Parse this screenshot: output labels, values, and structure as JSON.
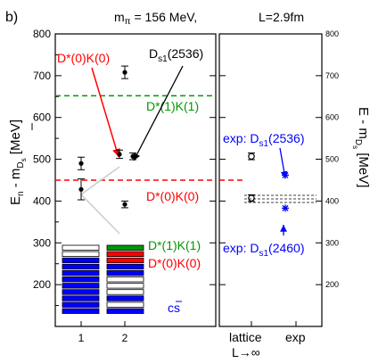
{
  "panel_label": "b)",
  "header": {
    "mpi_prefix": "m",
    "mpi_sub": "π",
    "mpi_value": " = 156 MeV,",
    "L_text": "L=2.9fm"
  },
  "left_ylabel": {
    "main": "E",
    "sub": "n",
    "rest": " - m",
    "rest_sub": "D",
    "rest_subsub": "s",
    "unit": " [MeV]"
  },
  "right_ylabel": {
    "main": "E - m",
    "sub": "D",
    "subsub": "s",
    "unit": " [MeV]"
  },
  "colors": {
    "red": "#ff0000",
    "green": "#009900",
    "blue": "#0000ff",
    "black": "#000000",
    "gray": "#cccccc"
  },
  "labels": {
    "dstar0_top": "D*(0)K(0)",
    "ds1_2536": "D",
    "ds1_2536_sub": "s1",
    "ds1_2536_rest": "(2536)",
    "dstar1_line": "D*(1)K(1)",
    "dstar0_line": "D*(0)K(0)",
    "legend_green": "D*(1)K(1)",
    "legend_red": "D*(0)K(0)",
    "cs_bar": "cs",
    "exp_2536_prefix": "exp: D",
    "exp_2536_sub": "s1",
    "exp_2536_rest": "(2536)",
    "exp_2460_prefix": "exp: D",
    "exp_2460_sub": "s1",
    "exp_2460_rest": "(2460)",
    "xlabel_right_1": "lattice",
    "xlabel_right_2": "exp",
    "xlabel_right_3": "L→∞"
  },
  "chart_data": {
    "type": "scatter",
    "title": "m_π = 156 MeV, L=2.9fm",
    "ylabel": "E_n - m_Ds [MeV]",
    "ylim": [
      100,
      800
    ],
    "yticks": [
      200,
      300,
      400,
      500,
      600,
      700,
      800
    ],
    "yticks_right": [
      200,
      300,
      400,
      500,
      600,
      700,
      800
    ],
    "xticks_left": [
      "1",
      "2"
    ],
    "xticks_right": [
      "lattice",
      "exp"
    ],
    "thresholds": [
      {
        "label": "D*(1)K(1)",
        "value": 652,
        "color": "#009900"
      },
      {
        "label": "D*(0)K(0)",
        "value": 450,
        "color": "#ff0000"
      }
    ],
    "series": [
      {
        "name": "1",
        "points": [
          {
            "x": 1,
            "y": 490,
            "err": 15
          },
          {
            "x": 1,
            "y": 428,
            "err": 25
          }
        ]
      },
      {
        "name": "2",
        "points": [
          {
            "x": 2,
            "y": 708,
            "err": 15
          },
          {
            "x": 2,
            "y": 512,
            "err": 10
          },
          {
            "x": 2,
            "y": 507,
            "err": 8
          },
          {
            "x": 2,
            "y": 392,
            "err": 8
          }
        ]
      },
      {
        "name": "lattice",
        "points": [
          {
            "x": "lattice",
            "y": 507,
            "err": 8
          },
          {
            "x": "lattice",
            "y": 407,
            "err": 8
          }
        ]
      },
      {
        "name": "exp",
        "points": [
          {
            "x": "exp",
            "y": 462
          },
          {
            "x": "exp",
            "y": 383
          }
        ]
      }
    ]
  }
}
